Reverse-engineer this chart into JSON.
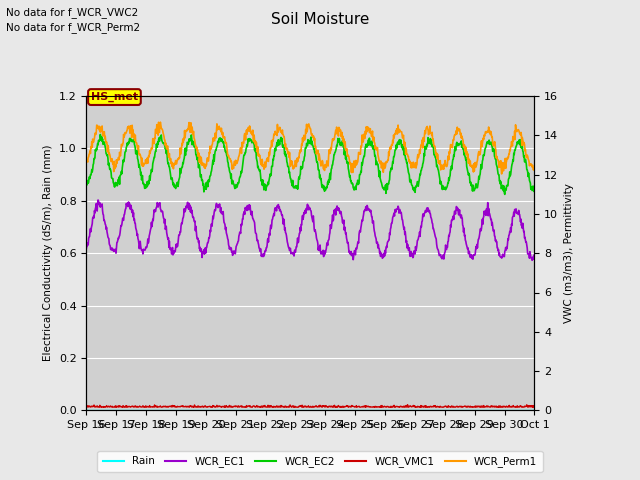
{
  "title": "Soil Moisture",
  "text_no_data_1": "No data for f_WCR_VWC2",
  "text_no_data_2": "No data for f_WCR_Perm2",
  "station_label": "HS_met",
  "ylabel_left": "Electrical Conductivity (dS/m), Rain (mm)",
  "ylabel_right": "VWC (m3/m3), Permittivity",
  "ylim_left": [
    0,
    1.2
  ],
  "ylim_right": [
    0,
    16
  ],
  "yticks_left": [
    0.0,
    0.2,
    0.4,
    0.6,
    0.8,
    1.0,
    1.2
  ],
  "yticks_right": [
    0,
    2,
    4,
    6,
    8,
    10,
    12,
    14,
    16
  ],
  "colors": {
    "Rain": "#00ffff",
    "WCR_EC1": "#9900cc",
    "WCR_EC2": "#00cc00",
    "WCR_VMC1": "#cc0000",
    "WCR_Perm1": "#ff9900"
  },
  "background_color": "#e8e8e8",
  "plot_bg_color": "#d0d0d0",
  "n_points": 1000,
  "figwidth": 6.4,
  "figheight": 4.8,
  "dpi": 100
}
